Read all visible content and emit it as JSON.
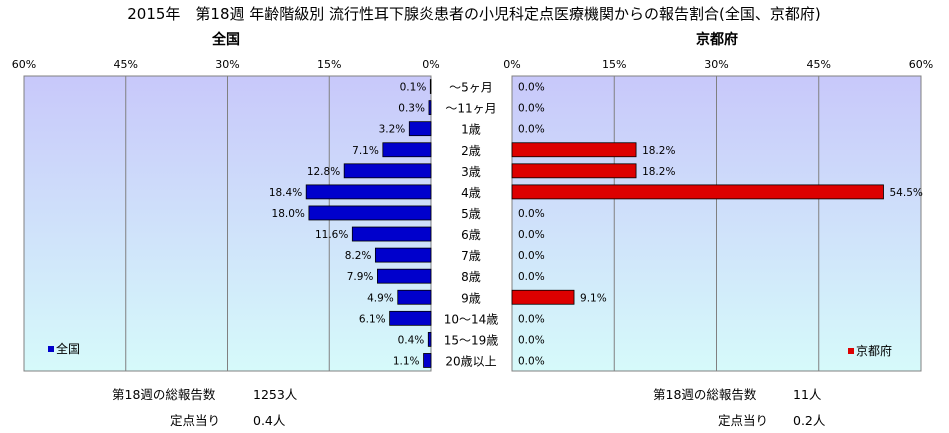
{
  "title": "2015年　第18週 年齢階級別 流行性耳下腺炎患者の小児科定点医療機関からの報告割合(全国、京都府)",
  "categories": [
    "～5ヶ月",
    "～11ヶ月",
    "1歳",
    "2歳",
    "3歳",
    "4歳",
    "5歳",
    "6歳",
    "7歳",
    "8歳",
    "9歳",
    "10～14歳",
    "15～19歳",
    "20歳以上"
  ],
  "chart_data": [
    {
      "type": "bar",
      "title": "全国",
      "orientation": "horizontal",
      "direction": "right-to-left",
      "categories": [
        "～5ヶ月",
        "～11ヶ月",
        "1歳",
        "2歳",
        "3歳",
        "4歳",
        "5歳",
        "6歳",
        "7歳",
        "8歳",
        "9歳",
        "10～14歳",
        "15～19歳",
        "20歳以上"
      ],
      "series": [
        {
          "name": "全国",
          "color": "#0000cc",
          "values": [
            0.1,
            0.3,
            3.2,
            7.1,
            12.8,
            18.4,
            18.0,
            11.6,
            8.2,
            7.9,
            4.9,
            6.1,
            0.4,
            1.1
          ],
          "value_labels": [
            "0.1%",
            "0.3%",
            "3.2%",
            "7.1%",
            "12.8%",
            "18.4%",
            "18.0%",
            "11.6%",
            "8.2%",
            "7.9%",
            "4.9%",
            "6.1%",
            "0.4%",
            "1.1%"
          ]
        }
      ],
      "xlim": [
        0,
        60
      ],
      "xticks": [
        60,
        45,
        30,
        15,
        0
      ],
      "xtick_labels": [
        "60%",
        "45%",
        "30%",
        "15%",
        "0%"
      ],
      "grid": true,
      "legend": "bottom-left"
    },
    {
      "type": "bar",
      "title": "京都府",
      "orientation": "horizontal",
      "direction": "left-to-right",
      "categories": [
        "～5ヶ月",
        "～11ヶ月",
        "1歳",
        "2歳",
        "3歳",
        "4歳",
        "5歳",
        "6歳",
        "7歳",
        "8歳",
        "9歳",
        "10～14歳",
        "15～19歳",
        "20歳以上"
      ],
      "series": [
        {
          "name": "京都府",
          "color": "#dd0000",
          "values": [
            0,
            0,
            0,
            18.2,
            18.2,
            54.5,
            0,
            0,
            0,
            0,
            9.1,
            0,
            0,
            0
          ],
          "value_labels": [
            "0.0%",
            "0.0%",
            "0.0%",
            "18.2%",
            "18.2%",
            "54.5%",
            "0.0%",
            "0.0%",
            "0.0%",
            "0.0%",
            "9.1%",
            "0.0%",
            "0.0%",
            "0.0%"
          ]
        }
      ],
      "xlim": [
        0,
        60
      ],
      "xticks": [
        0,
        15,
        30,
        45,
        60
      ],
      "xtick_labels": [
        "0%",
        "15%",
        "30%",
        "45%",
        "60%"
      ],
      "grid": true,
      "legend": "bottom-right"
    }
  ],
  "summary": {
    "left": {
      "total_label": "第18週の総報告数",
      "total_value": "1253人",
      "per_label": "定点当り",
      "per_value": "0.4人"
    },
    "right": {
      "total_label": "第18週の総報告数",
      "total_value": "11人",
      "per_label": "定点当り",
      "per_value": "0.2人"
    }
  },
  "colors": {
    "plot_bg_top": "#c8c8fa",
    "plot_bg_bottom": "#d6fafa",
    "grid": "#808080"
  }
}
